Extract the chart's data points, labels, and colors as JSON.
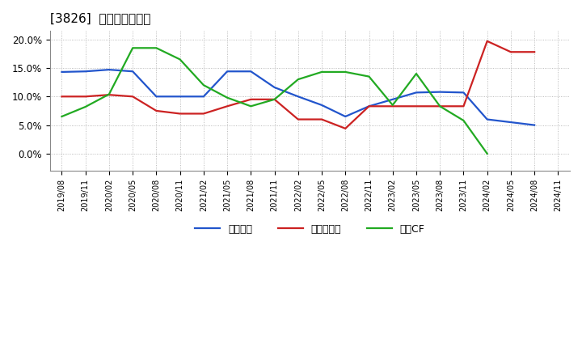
{
  "title": "[3826]  マージンの推移",
  "ylim": [
    -0.03,
    0.215
  ],
  "yticks": [
    0.0,
    0.05,
    0.1,
    0.15,
    0.2
  ],
  "ytick_labels": [
    "0.0%",
    "5.0%",
    "10.0%",
    "15.0%",
    "20.0%"
  ],
  "legend_labels": [
    "経常利益",
    "当期純利益",
    "営業CF"
  ],
  "line_colors": [
    "#2255cc",
    "#cc2222",
    "#22aa22"
  ],
  "x_labels": [
    "2019/08",
    "2019/11",
    "2020/02",
    "2020/05",
    "2020/08",
    "2020/11",
    "2021/02",
    "2021/05",
    "2021/08",
    "2021/11",
    "2022/02",
    "2022/05",
    "2022/08",
    "2022/11",
    "2023/02",
    "2023/05",
    "2023/08",
    "2023/11",
    "2024/02",
    "2024/05",
    "2024/08",
    "2024/11"
  ],
  "series_keiri": [
    0.143,
    0.144,
    0.147,
    0.144,
    0.1,
    0.1,
    0.1,
    0.144,
    0.144,
    0.116,
    0.1,
    0.085,
    0.065,
    0.083,
    0.095,
    0.107,
    0.108,
    0.107,
    0.06,
    0.055,
    0.05,
    null
  ],
  "series_touki": [
    0.1,
    0.1,
    0.103,
    0.1,
    0.075,
    0.07,
    0.07,
    0.083,
    0.095,
    0.095,
    0.06,
    0.06,
    0.044,
    0.083,
    0.083,
    0.083,
    0.083,
    0.083,
    0.197,
    0.178,
    0.178,
    null
  ],
  "series_eigyo": [
    0.065,
    0.082,
    0.104,
    0.185,
    0.185,
    0.165,
    0.12,
    0.098,
    0.083,
    0.095,
    0.13,
    0.143,
    0.143,
    0.135,
    0.085,
    0.14,
    0.083,
    0.058,
    0.0,
    null,
    null,
    null
  ],
  "background_color": "#ffffff",
  "grid_color": "#aaaaaa",
  "line_width": 1.6
}
